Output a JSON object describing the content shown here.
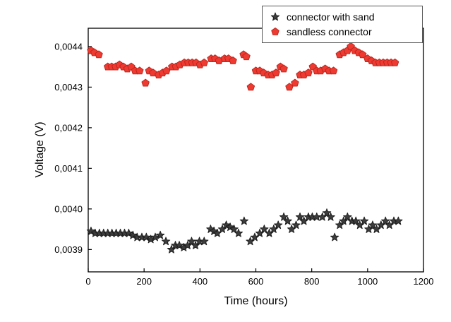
{
  "chart_data": {
    "type": "scatter",
    "title": "",
    "xlabel": "Time (hours)",
    "ylabel": "Voltage (V)",
    "xlim": [
      0,
      1200
    ],
    "ylim": [
      0.003845,
      0.004445
    ],
    "grid": false,
    "legend_position": "top-right",
    "x_ticks": {
      "values": [
        0,
        200,
        400,
        600,
        800,
        1000,
        1200
      ],
      "labels": [
        "0",
        "200",
        "400",
        "600",
        "800",
        "1000",
        "1200"
      ]
    },
    "y_ticks": {
      "values": [
        0.0039,
        0.004,
        0.0041,
        0.0042,
        0.0043,
        0.0044
      ],
      "labels": [
        "0,0039",
        "0,0040",
        "0,0041",
        "0,0042",
        "0,0043",
        "0,0044"
      ]
    },
    "series": [
      {
        "name": "connector with sand",
        "marker": "star",
        "color": "#3d3d3d",
        "stroke": "#1a1a1a",
        "points": [
          [
            10,
            0.003945
          ],
          [
            25,
            0.00394
          ],
          [
            40,
            0.00394
          ],
          [
            55,
            0.00394
          ],
          [
            70,
            0.00394
          ],
          [
            85,
            0.00394
          ],
          [
            100,
            0.00394
          ],
          [
            115,
            0.00394
          ],
          [
            130,
            0.00394
          ],
          [
            145,
            0.00394
          ],
          [
            160,
            0.003935
          ],
          [
            175,
            0.00393
          ],
          [
            192,
            0.00393
          ],
          [
            208,
            0.00393
          ],
          [
            224,
            0.003925
          ],
          [
            240,
            0.00393
          ],
          [
            258,
            0.003935
          ],
          [
            278,
            0.00392
          ],
          [
            298,
            0.0039
          ],
          [
            312,
            0.00391
          ],
          [
            326,
            0.00391
          ],
          [
            342,
            0.003905
          ],
          [
            356,
            0.00391
          ],
          [
            370,
            0.00392
          ],
          [
            384,
            0.00391
          ],
          [
            398,
            0.00392
          ],
          [
            415,
            0.00392
          ],
          [
            438,
            0.00395
          ],
          [
            450,
            0.003945
          ],
          [
            462,
            0.00394
          ],
          [
            480,
            0.00395
          ],
          [
            494,
            0.00396
          ],
          [
            508,
            0.003955
          ],
          [
            522,
            0.00395
          ],
          [
            538,
            0.00394
          ],
          [
            558,
            0.00397
          ],
          [
            580,
            0.00392
          ],
          [
            596,
            0.00393
          ],
          [
            614,
            0.00394
          ],
          [
            630,
            0.00395
          ],
          [
            648,
            0.00394
          ],
          [
            664,
            0.00395
          ],
          [
            680,
            0.00396
          ],
          [
            700,
            0.00398
          ],
          [
            714,
            0.00397
          ],
          [
            728,
            0.00395
          ],
          [
            744,
            0.00396
          ],
          [
            758,
            0.00398
          ],
          [
            772,
            0.00397
          ],
          [
            788,
            0.00398
          ],
          [
            802,
            0.00398
          ],
          [
            818,
            0.00398
          ],
          [
            838,
            0.00398
          ],
          [
            854,
            0.00399
          ],
          [
            868,
            0.00398
          ],
          [
            882,
            0.00393
          ],
          [
            900,
            0.00396
          ],
          [
            914,
            0.00397
          ],
          [
            928,
            0.00398
          ],
          [
            944,
            0.00397
          ],
          [
            958,
            0.00397
          ],
          [
            972,
            0.00396
          ],
          [
            988,
            0.00397
          ],
          [
            1004,
            0.00395
          ],
          [
            1018,
            0.00396
          ],
          [
            1032,
            0.00395
          ],
          [
            1048,
            0.00396
          ],
          [
            1064,
            0.00397
          ],
          [
            1078,
            0.00396
          ],
          [
            1094,
            0.00397
          ],
          [
            1110,
            0.00397
          ]
        ]
      },
      {
        "name": "sandless connector",
        "marker": "pentagon",
        "color": "#ee3a30",
        "stroke": "#b8241c",
        "points": [
          [
            10,
            0.00439
          ],
          [
            22,
            0.004385
          ],
          [
            38,
            0.00438
          ],
          [
            70,
            0.00435
          ],
          [
            84,
            0.00435
          ],
          [
            98,
            0.00435
          ],
          [
            112,
            0.004355
          ],
          [
            126,
            0.00435
          ],
          [
            140,
            0.004345
          ],
          [
            154,
            0.00435
          ],
          [
            168,
            0.00434
          ],
          [
            184,
            0.00434
          ],
          [
            205,
            0.00431
          ],
          [
            218,
            0.00434
          ],
          [
            232,
            0.004335
          ],
          [
            252,
            0.00433
          ],
          [
            266,
            0.004335
          ],
          [
            280,
            0.00434
          ],
          [
            300,
            0.00435
          ],
          [
            314,
            0.00435
          ],
          [
            328,
            0.004355
          ],
          [
            344,
            0.00436
          ],
          [
            358,
            0.00436
          ],
          [
            372,
            0.00436
          ],
          [
            386,
            0.00436
          ],
          [
            400,
            0.004355
          ],
          [
            415,
            0.00436
          ],
          [
            440,
            0.00437
          ],
          [
            454,
            0.00437
          ],
          [
            468,
            0.004365
          ],
          [
            488,
            0.00437
          ],
          [
            502,
            0.00437
          ],
          [
            518,
            0.004365
          ],
          [
            556,
            0.00438
          ],
          [
            566,
            0.004375
          ],
          [
            582,
            0.0043
          ],
          [
            600,
            0.00434
          ],
          [
            614,
            0.00434
          ],
          [
            628,
            0.004335
          ],
          [
            644,
            0.00433
          ],
          [
            658,
            0.00433
          ],
          [
            672,
            0.004335
          ],
          [
            688,
            0.00435
          ],
          [
            700,
            0.004345
          ],
          [
            720,
            0.0043
          ],
          [
            740,
            0.00431
          ],
          [
            758,
            0.00433
          ],
          [
            772,
            0.00433
          ],
          [
            788,
            0.004335
          ],
          [
            804,
            0.00435
          ],
          [
            818,
            0.00434
          ],
          [
            832,
            0.00434
          ],
          [
            848,
            0.004345
          ],
          [
            862,
            0.00434
          ],
          [
            878,
            0.00434
          ],
          [
            900,
            0.00438
          ],
          [
            914,
            0.004385
          ],
          [
            928,
            0.00439
          ],
          [
            940,
            0.0044
          ],
          [
            954,
            0.00439
          ],
          [
            968,
            0.004385
          ],
          [
            982,
            0.00438
          ],
          [
            1000,
            0.00437
          ],
          [
            1014,
            0.004365
          ],
          [
            1028,
            0.00436
          ],
          [
            1042,
            0.00436
          ],
          [
            1056,
            0.00436
          ],
          [
            1070,
            0.00436
          ],
          [
            1084,
            0.00436
          ],
          [
            1098,
            0.00436
          ]
        ]
      }
    ]
  }
}
